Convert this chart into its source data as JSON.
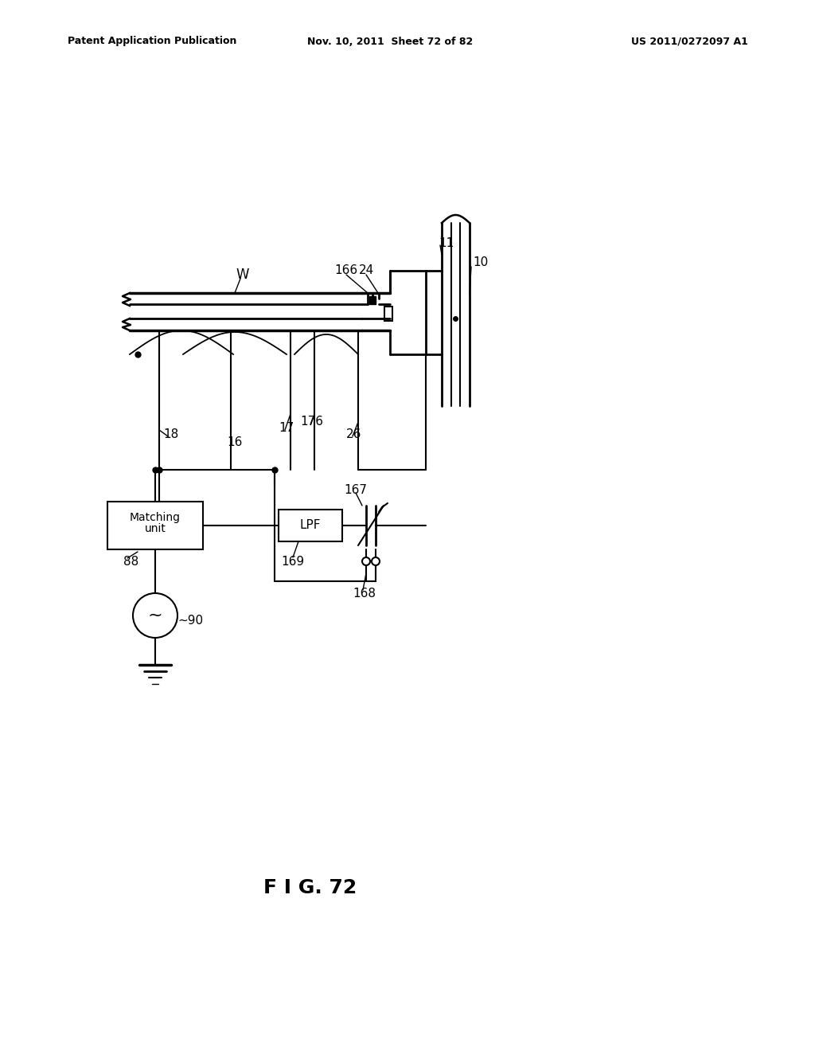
{
  "header_left": "Patent Application Publication",
  "header_mid": "Nov. 10, 2011  Sheet 72 of 82",
  "header_right": "US 2011/0272097 A1",
  "fig_label": "F I G. 72",
  "background": "#ffffff"
}
